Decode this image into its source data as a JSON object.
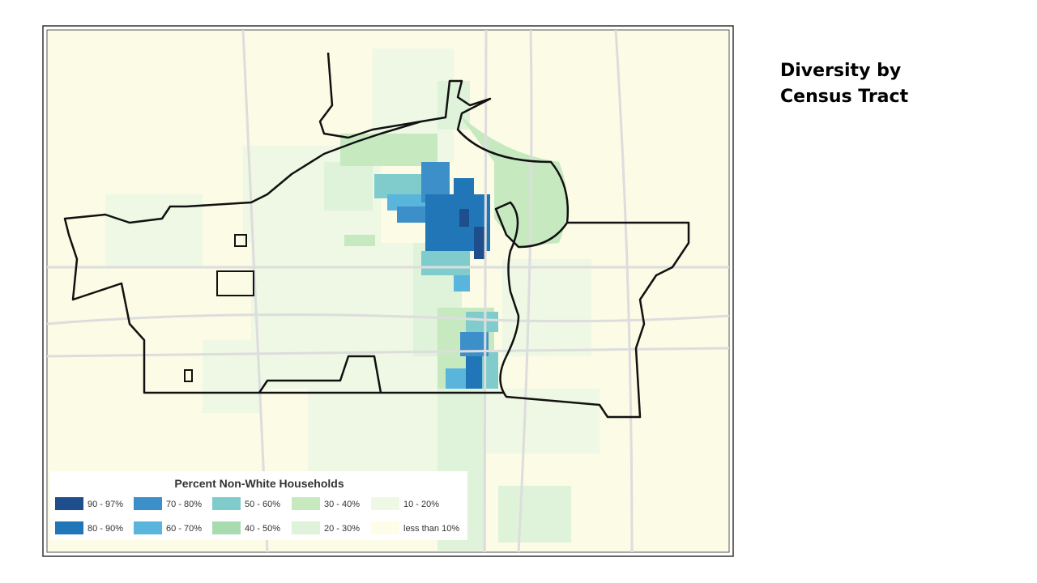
{
  "slide": {
    "title_lines": [
      "Diversity by",
      "Census Tract"
    ]
  },
  "map": {
    "legend": {
      "title": "Percent Non-White Households",
      "items": [
        {
          "label": "90 - 97%",
          "color": "#1f4e8c"
        },
        {
          "label": "70 - 80%",
          "color": "#3d8fc9"
        },
        {
          "label": "50 - 60%",
          "color": "#80cccc"
        },
        {
          "label": "30 - 40%",
          "color": "#c7e9c0"
        },
        {
          "label": "10 - 20%",
          "color": "#eef8e4"
        },
        {
          "label": "80 - 90%",
          "color": "#2176b8"
        },
        {
          "label": "60 - 70%",
          "color": "#5ab5dc"
        },
        {
          "label": "40 - 50%",
          "color": "#a8dcb0"
        },
        {
          "label": "20 - 30%",
          "color": "#dff2da"
        },
        {
          "label": "less than 10%",
          "color": "#fdfde8"
        }
      ]
    }
  }
}
